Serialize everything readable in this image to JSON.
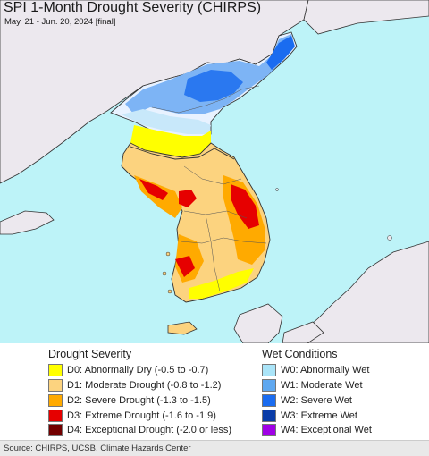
{
  "title": "SPI 1-Month Drought Severity (CHIRPS)",
  "subtitle": "May. 21 - Jun. 20, 2024 [final]",
  "colors": {
    "water": "#bdf3f8",
    "land_other": "#ece8ee",
    "borders": "#333333"
  },
  "legend": {
    "drought_heading": "Drought Severity",
    "drought_items": [
      {
        "label": "D0: Abnormally Dry (-0.5 to -0.7)",
        "color": "#ffff00"
      },
      {
        "label": "D1: Moderate Drought (-0.8 to -1.2)",
        "color": "#fcd37f"
      },
      {
        "label": "D2: Severe Drought (-1.3 to -1.5)",
        "color": "#ffaa00"
      },
      {
        "label": "D3: Extreme Drought (-1.6 to -1.9)",
        "color": "#e60000"
      },
      {
        "label": "D4: Exceptional Drought (-2.0 or less)",
        "color": "#730000"
      }
    ],
    "wet_heading": "Wet Conditions",
    "wet_items": [
      {
        "label": "W0: Abnormally Wet",
        "color": "#aae4f8"
      },
      {
        "label": "W1: Moderate Wet",
        "color": "#5fa8f0"
      },
      {
        "label": "W2: Severe Wet",
        "color": "#1a6cf0"
      },
      {
        "label": "W3: Extreme Wet",
        "color": "#0a3ca8"
      },
      {
        "label": "W4: Exceptional Wet",
        "color": "#a000e6"
      }
    ]
  },
  "source": "Source: CHIRPS, UCSB, Climate Hazards Center"
}
